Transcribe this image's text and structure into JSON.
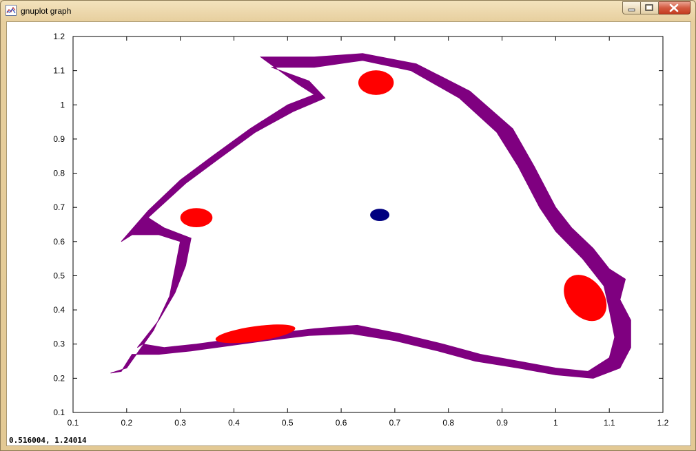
{
  "window": {
    "title": "gnuplot graph",
    "status_coords": "0.516004, 1.24014"
  },
  "icons": {
    "app": "gnuplot-graph-icon",
    "minimize": "minimize-icon",
    "maximize": "maximize-icon",
    "close": "close-icon"
  },
  "colors": {
    "attractor": "#7f0080",
    "islands": "#ff0000",
    "center": "#000080"
  },
  "chart_data": {
    "type": "scatter",
    "title": "",
    "xlabel": "",
    "ylabel": "",
    "xlim": [
      0.1,
      1.2
    ],
    "ylim": [
      0.1,
      1.2
    ],
    "x_ticks": [
      "0.1",
      "0.2",
      "0.3",
      "0.4",
      "0.5",
      "0.6",
      "0.7",
      "0.8",
      "0.9",
      "1",
      "1.1",
      "1.2"
    ],
    "y_ticks": [
      "0.1",
      "0.2",
      "0.3",
      "0.4",
      "0.5",
      "0.6",
      "0.7",
      "0.8",
      "0.9",
      "1",
      "1.1",
      "1.2"
    ],
    "grid": false,
    "legend": "none",
    "series": [
      {
        "role": "attractor-band",
        "color": "#7f0080",
        "outline": [
          [
            0.45,
            1.14
          ],
          [
            0.55,
            1.14
          ],
          [
            0.64,
            1.15
          ],
          [
            0.74,
            1.12
          ],
          [
            0.84,
            1.04
          ],
          [
            0.92,
            0.93
          ],
          [
            0.96,
            0.82
          ],
          [
            1.0,
            0.7
          ],
          [
            1.03,
            0.64
          ],
          [
            1.07,
            0.58
          ],
          [
            1.1,
            0.52
          ],
          [
            1.13,
            0.49
          ],
          [
            1.12,
            0.43
          ],
          [
            1.14,
            0.37
          ],
          [
            1.14,
            0.29
          ],
          [
            1.12,
            0.23
          ],
          [
            1.07,
            0.2
          ],
          [
            1.0,
            0.21
          ],
          [
            0.93,
            0.23
          ],
          [
            0.85,
            0.25
          ],
          [
            0.78,
            0.28
          ],
          [
            0.7,
            0.31
          ],
          [
            0.62,
            0.33
          ],
          [
            0.54,
            0.325
          ],
          [
            0.46,
            0.31
          ],
          [
            0.39,
            0.295
          ],
          [
            0.32,
            0.28
          ],
          [
            0.26,
            0.27
          ],
          [
            0.21,
            0.27
          ],
          [
            0.19,
            0.22
          ],
          [
            0.17,
            0.215
          ],
          [
            0.2,
            0.23
          ],
          [
            0.25,
            0.34
          ],
          [
            0.28,
            0.44
          ],
          [
            0.29,
            0.52
          ],
          [
            0.3,
            0.6
          ],
          [
            0.26,
            0.62
          ],
          [
            0.21,
            0.62
          ],
          [
            0.19,
            0.6
          ],
          [
            0.24,
            0.69
          ],
          [
            0.3,
            0.78
          ],
          [
            0.36,
            0.85
          ],
          [
            0.43,
            0.93
          ],
          [
            0.5,
            1.0
          ],
          [
            0.55,
            1.03
          ],
          [
            0.52,
            1.06
          ],
          [
            0.45,
            1.14
          ]
        ]
      },
      {
        "role": "island-top",
        "color": "#ff0000",
        "points": [
          [
            0.665,
            1.065
          ]
        ],
        "radii": [
          0.033,
          0.036
        ]
      },
      {
        "role": "island-left",
        "color": "#ff0000",
        "points": [
          [
            0.33,
            0.67
          ]
        ],
        "radii": [
          0.03,
          0.028
        ]
      },
      {
        "role": "island-right",
        "color": "#ff0000",
        "points": [
          [
            1.055,
            0.435
          ]
        ],
        "radii": [
          0.034,
          0.075
        ],
        "rotation": -38
      },
      {
        "role": "island-bottom",
        "color": "#ff0000",
        "points": [
          [
            0.44,
            0.33
          ]
        ],
        "radii": [
          0.075,
          0.022
        ],
        "rotation": -8
      },
      {
        "role": "center",
        "color": "#000080",
        "points": [
          [
            0.672,
            0.678
          ]
        ],
        "radii": [
          0.018,
          0.018
        ]
      }
    ]
  }
}
